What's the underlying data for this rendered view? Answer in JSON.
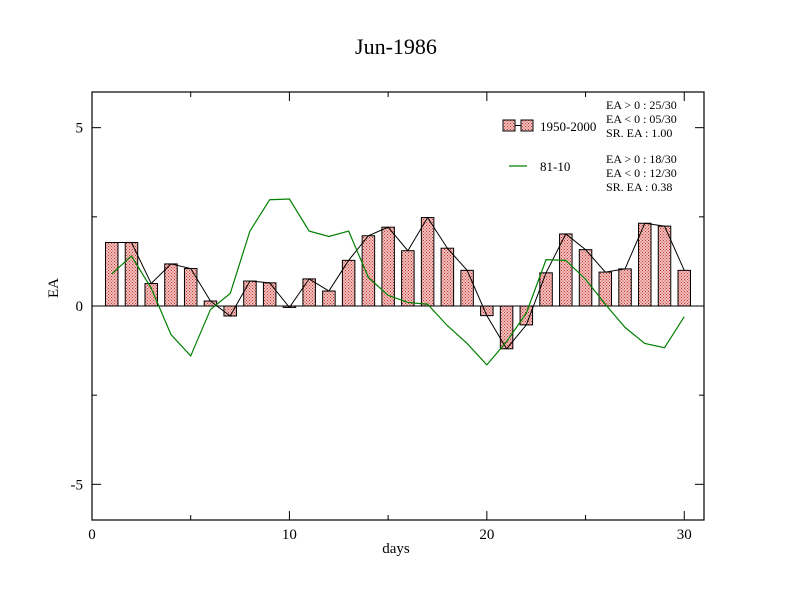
{
  "chart_data": {
    "type": "bar",
    "title": "Jun-1986",
    "xlabel": "days",
    "ylabel": "EA",
    "xlim": [
      0,
      31
    ],
    "ylim": [
      -6,
      6
    ],
    "xticks": [
      0,
      10,
      20,
      30
    ],
    "yticks": [
      -5,
      0,
      5
    ],
    "x": [
      1,
      2,
      3,
      4,
      5,
      6,
      7,
      8,
      9,
      10,
      11,
      12,
      13,
      14,
      15,
      16,
      17,
      18,
      19,
      20,
      21,
      22,
      23,
      24,
      25,
      26,
      27,
      28,
      29,
      30
    ],
    "series": [
      {
        "name": "1950-2000",
        "kind": "bar",
        "values": [
          1.78,
          1.78,
          0.63,
          1.18,
          1.05,
          0.14,
          -0.28,
          0.7,
          0.65,
          -0.04,
          0.76,
          0.42,
          1.28,
          1.97,
          2.21,
          1.55,
          2.48,
          1.62,
          1.0,
          -0.27,
          -1.2,
          -0.53,
          0.93,
          2.02,
          1.58,
          0.95,
          1.04,
          2.32,
          2.24,
          1.0
        ]
      },
      {
        "name": "81-10",
        "kind": "line",
        "values": [
          0.9,
          1.4,
          0.5,
          -0.8,
          -1.4,
          -0.1,
          0.35,
          2.1,
          2.98,
          3.0,
          2.1,
          1.95,
          2.1,
          0.8,
          0.3,
          0.1,
          0.05,
          -0.55,
          -1.05,
          -1.65,
          -1.0,
          -0.2,
          1.3,
          1.28,
          0.75,
          0.05,
          -0.6,
          -1.05,
          -1.17,
          -0.3
        ]
      }
    ],
    "legend_position": "top-right",
    "stats": {
      "set1": [
        "EA > 0 : 25/30",
        "EA < 0 : 05/30",
        "SR. EA :  1.00"
      ],
      "set2": [
        "EA > 0 : 18/30",
        "EA < 0 : 12/30",
        "SR. EA :  0.38"
      ]
    },
    "colors": {
      "bar_fill": "#e8a0a0",
      "bar_hatch": "#c0392b",
      "line": "#008000",
      "connect_line": "#000000"
    }
  }
}
